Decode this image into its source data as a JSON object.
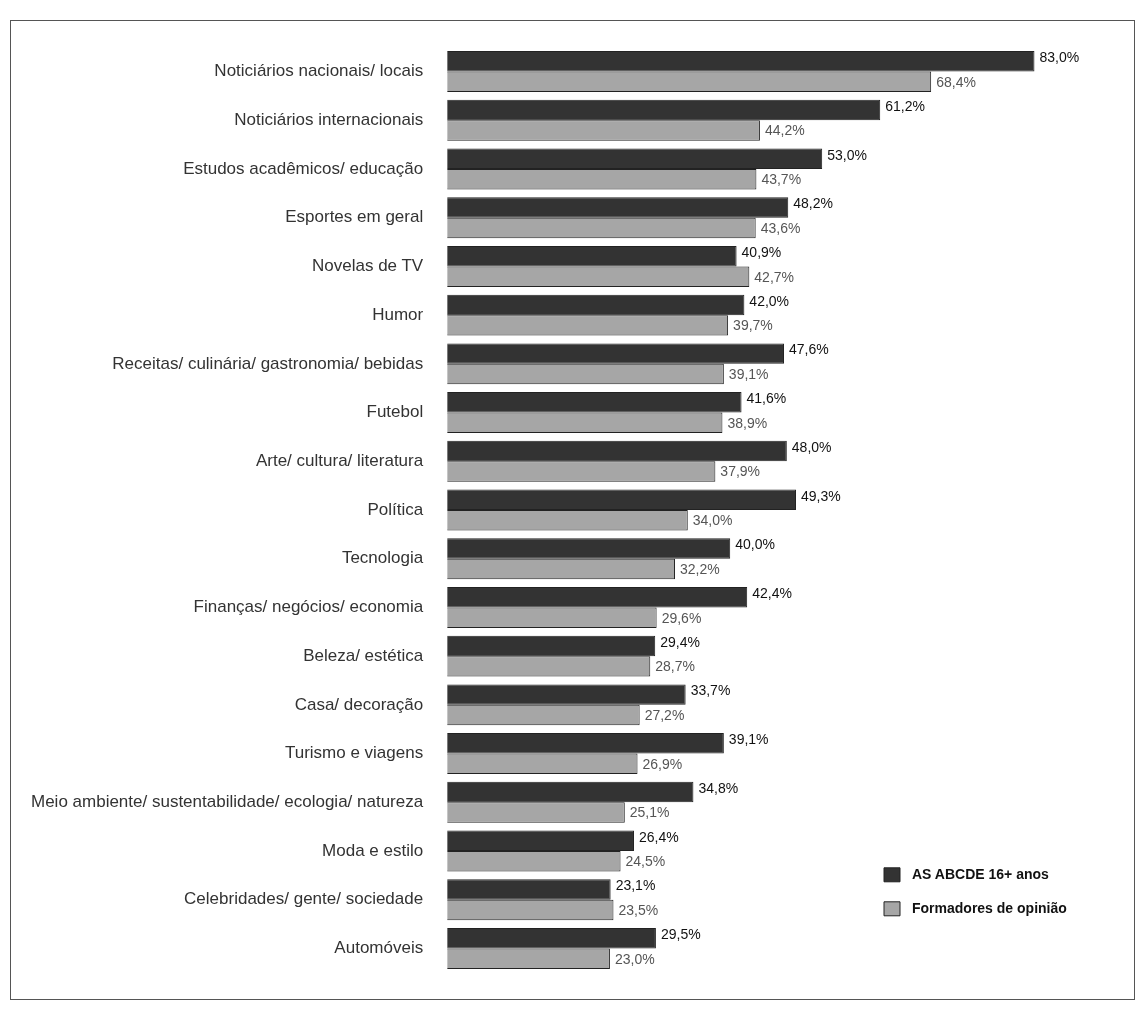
{
  "chart_data": {
    "type": "bar",
    "orientation": "horizontal",
    "categories": [
      "Noticiários nacionais/ locais",
      "Noticiários internacionais",
      "Estudos acadêmicos/ educação",
      "Esportes em geral",
      "Novelas de TV",
      "Humor",
      "Receitas/ culinária/ gastronomia/ bebidas",
      "Futebol",
      "Arte/ cultura/ literatura",
      "Política",
      "Tecnologia",
      "Finanças/ negócios/ economia",
      "Beleza/ estética",
      "Casa/ decoração",
      "Turismo e viagens",
      "Meio ambiente/ sustentabilidade/ ecologia/ natureza",
      "Moda e estilo",
      "Celebridades/ gente/ sociedade",
      "Automóveis"
    ],
    "series": [
      {
        "name": "AS ABCDE 16+ anos",
        "color": "#333333",
        "values": [
          83.0,
          61.2,
          53.0,
          48.2,
          40.9,
          42.0,
          47.6,
          41.6,
          48.0,
          49.3,
          40.0,
          42.4,
          29.4,
          33.7,
          39.1,
          34.8,
          26.4,
          23.1,
          29.5
        ],
        "value_labels": [
          "83,0%",
          "61,2%",
          "53,0%",
          "48,2%",
          "40,9%",
          "42,0%",
          "47,6%",
          "41,6%",
          "48,0%",
          "49,3%",
          "40,0%",
          "42,4%",
          "29,4%",
          "33,7%",
          "39,1%",
          "34,8%",
          "26,4%",
          "23,1%",
          "29,5%"
        ]
      },
      {
        "name": "Formadores de opinião",
        "color": "#a6a6a6",
        "values": [
          68.4,
          44.2,
          43.7,
          43.6,
          42.7,
          39.7,
          39.1,
          38.9,
          37.9,
          34.0,
          32.2,
          29.6,
          28.7,
          27.2,
          26.9,
          25.1,
          24.5,
          23.5,
          23.0
        ],
        "value_labels": [
          "68,4%",
          "44,2%",
          "43,7%",
          "43,6%",
          "42,7%",
          "39,7%",
          "39,1%",
          "38,9%",
          "37,9%",
          "34,0%",
          "32,2%",
          "29,6%",
          "28,7%",
          "27,2%",
          "26,9%",
          "25,1%",
          "24,5%",
          "23,5%",
          "23,0%"
        ]
      }
    ],
    "legend": "bottom right"
  }
}
